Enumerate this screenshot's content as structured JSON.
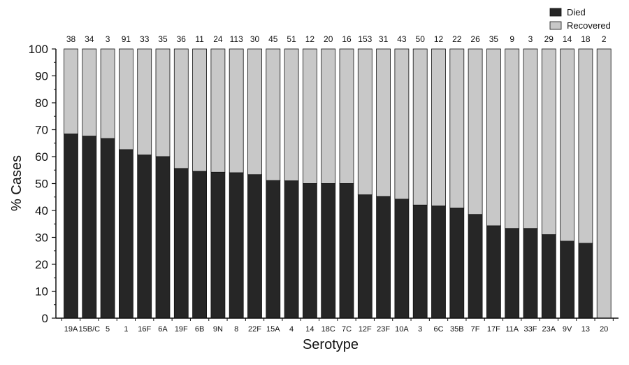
{
  "chart_data": {
    "type": "bar",
    "stacked": true,
    "title": "",
    "xlabel": "Serotype",
    "ylabel": "% Cases",
    "ylim": [
      0,
      100
    ],
    "yticks": [
      0,
      10,
      20,
      30,
      40,
      50,
      60,
      70,
      80,
      90,
      100
    ],
    "grid": false,
    "legend_position": "top-right",
    "categories": [
      "19A",
      "15B/C",
      "5",
      "1",
      "16F",
      "6A",
      "19F",
      "6B",
      "9N",
      "8",
      "22F",
      "15A",
      "4",
      "14",
      "18C",
      "7C",
      "12F",
      "23F",
      "10A",
      "3",
      "6C",
      "35B",
      "7F",
      "17F",
      "11A",
      "33F",
      "23A",
      "9V",
      "13",
      "20"
    ],
    "case_counts": [
      "38",
      "34",
      "3",
      "91",
      "33",
      "35",
      "36",
      "11",
      "24",
      "113",
      "30",
      "45",
      "51",
      "12",
      "20",
      "16",
      "153",
      "31",
      "43",
      "50",
      "12",
      "22",
      "26",
      "35",
      "9",
      "3",
      "29",
      "14",
      "18",
      "2"
    ],
    "series": [
      {
        "name": "Died",
        "color": "#262626",
        "values": [
          68.4,
          67.6,
          66.7,
          62.6,
          60.6,
          60.0,
          55.6,
          54.5,
          54.2,
          54.0,
          53.3,
          51.1,
          51.0,
          50.0,
          50.0,
          50.0,
          45.8,
          45.2,
          44.2,
          42.0,
          41.7,
          40.9,
          38.5,
          34.3,
          33.3,
          33.3,
          31.0,
          28.6,
          27.8,
          0
        ]
      },
      {
        "name": "Recovered",
        "color": "#c8c8c8",
        "values": [
          31.6,
          32.4,
          33.3,
          37.4,
          39.4,
          40.0,
          44.4,
          45.5,
          45.8,
          46.0,
          46.7,
          48.9,
          49.0,
          50.0,
          50.0,
          50.0,
          54.2,
          54.8,
          55.8,
          58.0,
          58.3,
          59.1,
          61.5,
          65.7,
          66.7,
          66.7,
          69.0,
          71.4,
          72.2,
          100
        ]
      }
    ]
  }
}
